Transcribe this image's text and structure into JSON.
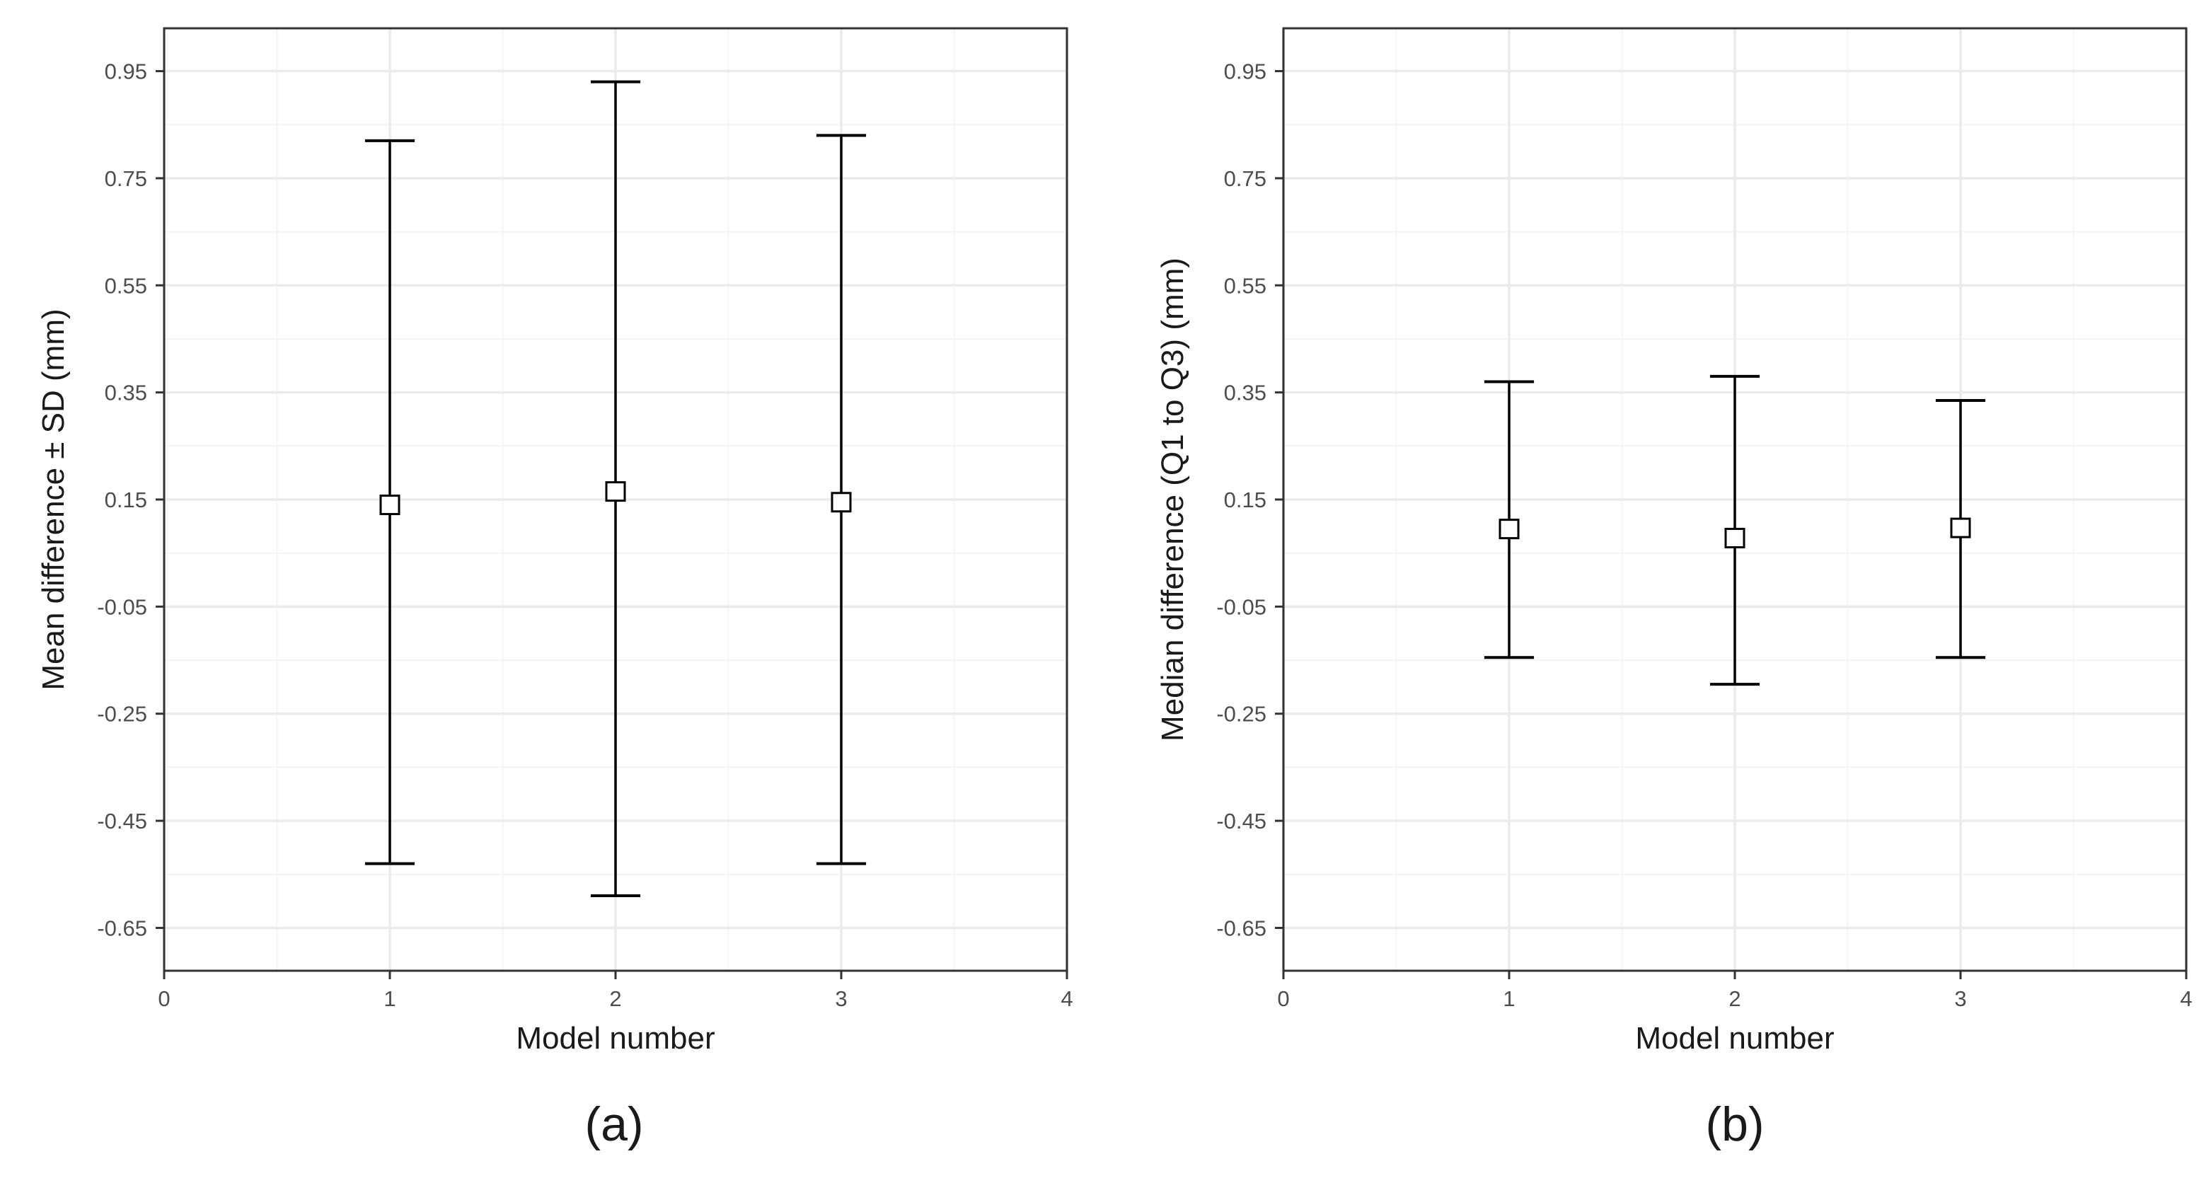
{
  "chart_data": [
    {
      "type": "errorbar",
      "panel_label": "(a)",
      "xlabel": "Model number",
      "ylabel": "Mean difference ± SD (mm)",
      "xlim": [
        0,
        4
      ],
      "ylim": [
        -0.73,
        1.03
      ],
      "x_ticks": [
        0,
        1,
        2,
        3,
        4
      ],
      "y_ticks": [
        0.95,
        0.75,
        0.55,
        0.35,
        0.15,
        -0.05,
        -0.25,
        -0.45,
        -0.65
      ],
      "x_tick_labels": [
        "0",
        "1",
        "2",
        "3",
        "4"
      ],
      "y_tick_labels": [
        "0.95",
        "0.75",
        "0.55",
        "0.35",
        "0.15",
        "-0.05",
        "-0.25",
        "-0.45",
        "-0.65"
      ],
      "grid": true,
      "points": [
        {
          "x": 1,
          "center": 0.14,
          "lower": -0.53,
          "upper": 0.82
        },
        {
          "x": 2,
          "center": 0.165,
          "lower": -0.59,
          "upper": 0.93
        },
        {
          "x": 3,
          "center": 0.145,
          "lower": -0.53,
          "upper": 0.83
        }
      ]
    },
    {
      "type": "errorbar",
      "panel_label": "(b)",
      "xlabel": "Model number",
      "ylabel": "Median difference (Q1 to Q3) (mm)",
      "xlim": [
        0,
        4
      ],
      "ylim": [
        -0.73,
        1.03
      ],
      "x_ticks": [
        0,
        1,
        2,
        3,
        4
      ],
      "y_ticks": [
        0.95,
        0.75,
        0.55,
        0.35,
        0.15,
        -0.05,
        -0.25,
        -0.45,
        -0.65
      ],
      "x_tick_labels": [
        "0",
        "1",
        "2",
        "3",
        "4"
      ],
      "y_tick_labels": [
        "0.95",
        "0.75",
        "0.55",
        "0.35",
        "0.15",
        "-0.05",
        "-0.25",
        "-0.45",
        "-0.65"
      ],
      "grid": true,
      "points": [
        {
          "x": 1,
          "center": 0.095,
          "lower": -0.145,
          "upper": 0.37
        },
        {
          "x": 2,
          "center": 0.078,
          "lower": -0.195,
          "upper": 0.38
        },
        {
          "x": 3,
          "center": 0.097,
          "lower": -0.145,
          "upper": 0.335
        }
      ]
    }
  ],
  "colors": {
    "panel_background": "#ffffff",
    "grid_major": "#ebebeb",
    "grid_minor": "#f4f4f4",
    "panel_border": "#333333",
    "errorbar": "#000000",
    "marker_fill": "#ffffff",
    "marker_stroke": "#000000"
  }
}
